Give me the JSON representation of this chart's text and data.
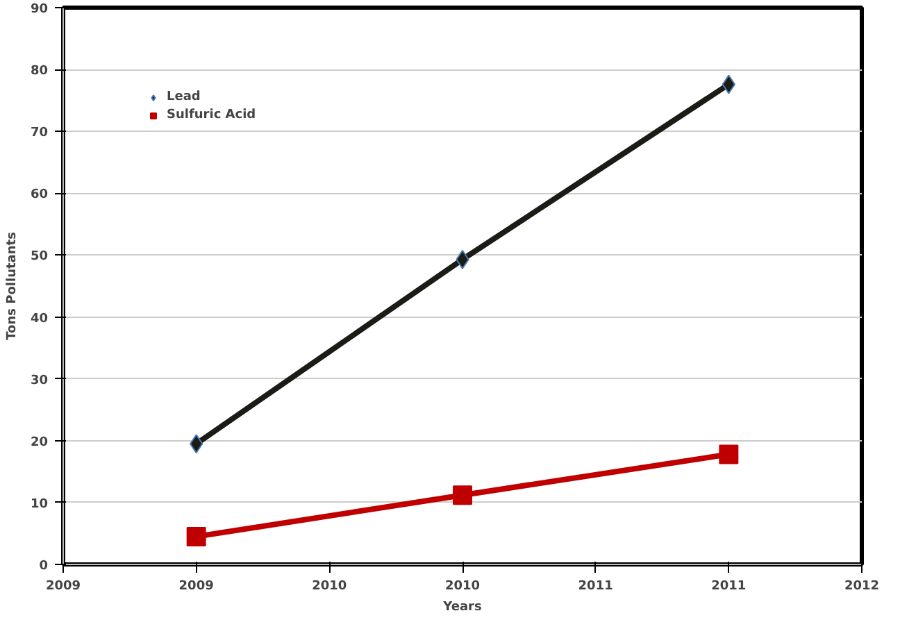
{
  "chart_data": {
    "type": "line",
    "xlabel": "Years",
    "ylabel": "Tons Pollutants",
    "x": [
      2009.5,
      2010.5,
      2011.5
    ],
    "series": [
      {
        "name": "Lead",
        "color": "#1c1c16",
        "values": [
          19.5,
          49.3,
          77.6
        ],
        "marker": "diamond"
      },
      {
        "name": "Sulfuric Acid",
        "color": "#c00000",
        "values": [
          4.5,
          11.2,
          17.8
        ],
        "marker": "square"
      }
    ],
    "xlim": [
      2009,
      2012
    ],
    "ylim": [
      0,
      90
    ],
    "xticks": [
      2009,
      {
        "value": 2009.5,
        "label": "2009"
      },
      2010,
      {
        "value": 2010.5,
        "label": "2010"
      },
      2011,
      {
        "value": 2011.5,
        "label": "2011"
      },
      2012
    ],
    "yticks": [
      0,
      10,
      20,
      30,
      40,
      50,
      60,
      70,
      80,
      90
    ],
    "grid": "y",
    "legend": "top left"
  }
}
